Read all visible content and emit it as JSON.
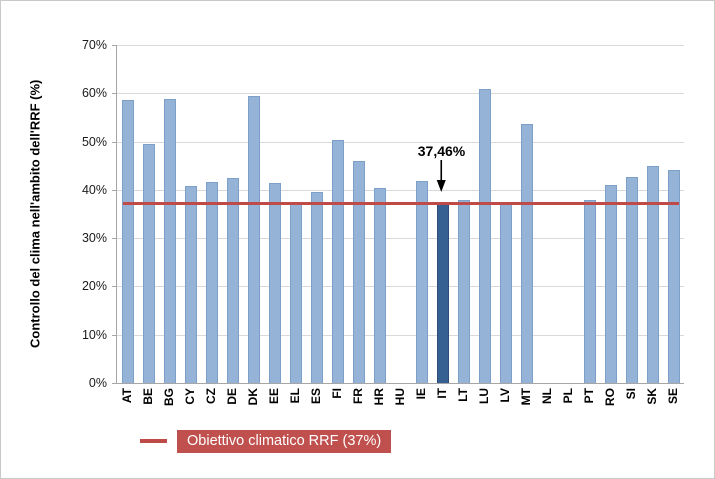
{
  "window": {
    "background": "#ffffff",
    "border_color": "#c9c9c9"
  },
  "chart_data": {
    "type": "bar",
    "title": "",
    "xlabel": "",
    "ylabel": "Controllo del clima nell'ambito dell'RRF (%)",
    "ylim": [
      0,
      70
    ],
    "yticks": [
      0,
      10,
      20,
      30,
      40,
      50,
      60,
      70
    ],
    "ytick_labels": [
      "0%",
      "10%",
      "20%",
      "30%",
      "40%",
      "50%",
      "60%",
      "70%"
    ],
    "grid": true,
    "legend_position": "bottom-left",
    "categories": [
      "AT",
      "BE",
      "BG",
      "CY",
      "CZ",
      "DE",
      "DK",
      "EE",
      "EL",
      "ES",
      "FI",
      "FR",
      "HR",
      "HU",
      "IE",
      "IT",
      "LT",
      "LU",
      "LV",
      "MT",
      "NL",
      "PL",
      "PT",
      "RO",
      "SI",
      "SK",
      "SE"
    ],
    "values": [
      58.6,
      49.5,
      58.9,
      40.7,
      41.6,
      42.5,
      59.4,
      41.5,
      37.5,
      39.5,
      50.3,
      46.0,
      40.4,
      null,
      41.8,
      37.46,
      37.8,
      60.9,
      37.5,
      53.6,
      null,
      null,
      37.8,
      41.0,
      42.6,
      44.9,
      44.2
    ],
    "highlight": {
      "category": "IT",
      "label": "37,46%"
    },
    "target_line": {
      "value": 37,
      "label": "Obiettivo climatico RRF (37%)"
    },
    "colors": {
      "bar": "#95B3D7",
      "bar_border": "#7DA0C9",
      "highlight_bar": "#366092",
      "highlight_bar_border": "#2C4D77",
      "target": "#BE4B48",
      "legend_box_bg": "#C0504D",
      "legend_text": "#FFFFFF",
      "gridline": "#D9D9D9",
      "axis": "#A6A6A6"
    }
  }
}
